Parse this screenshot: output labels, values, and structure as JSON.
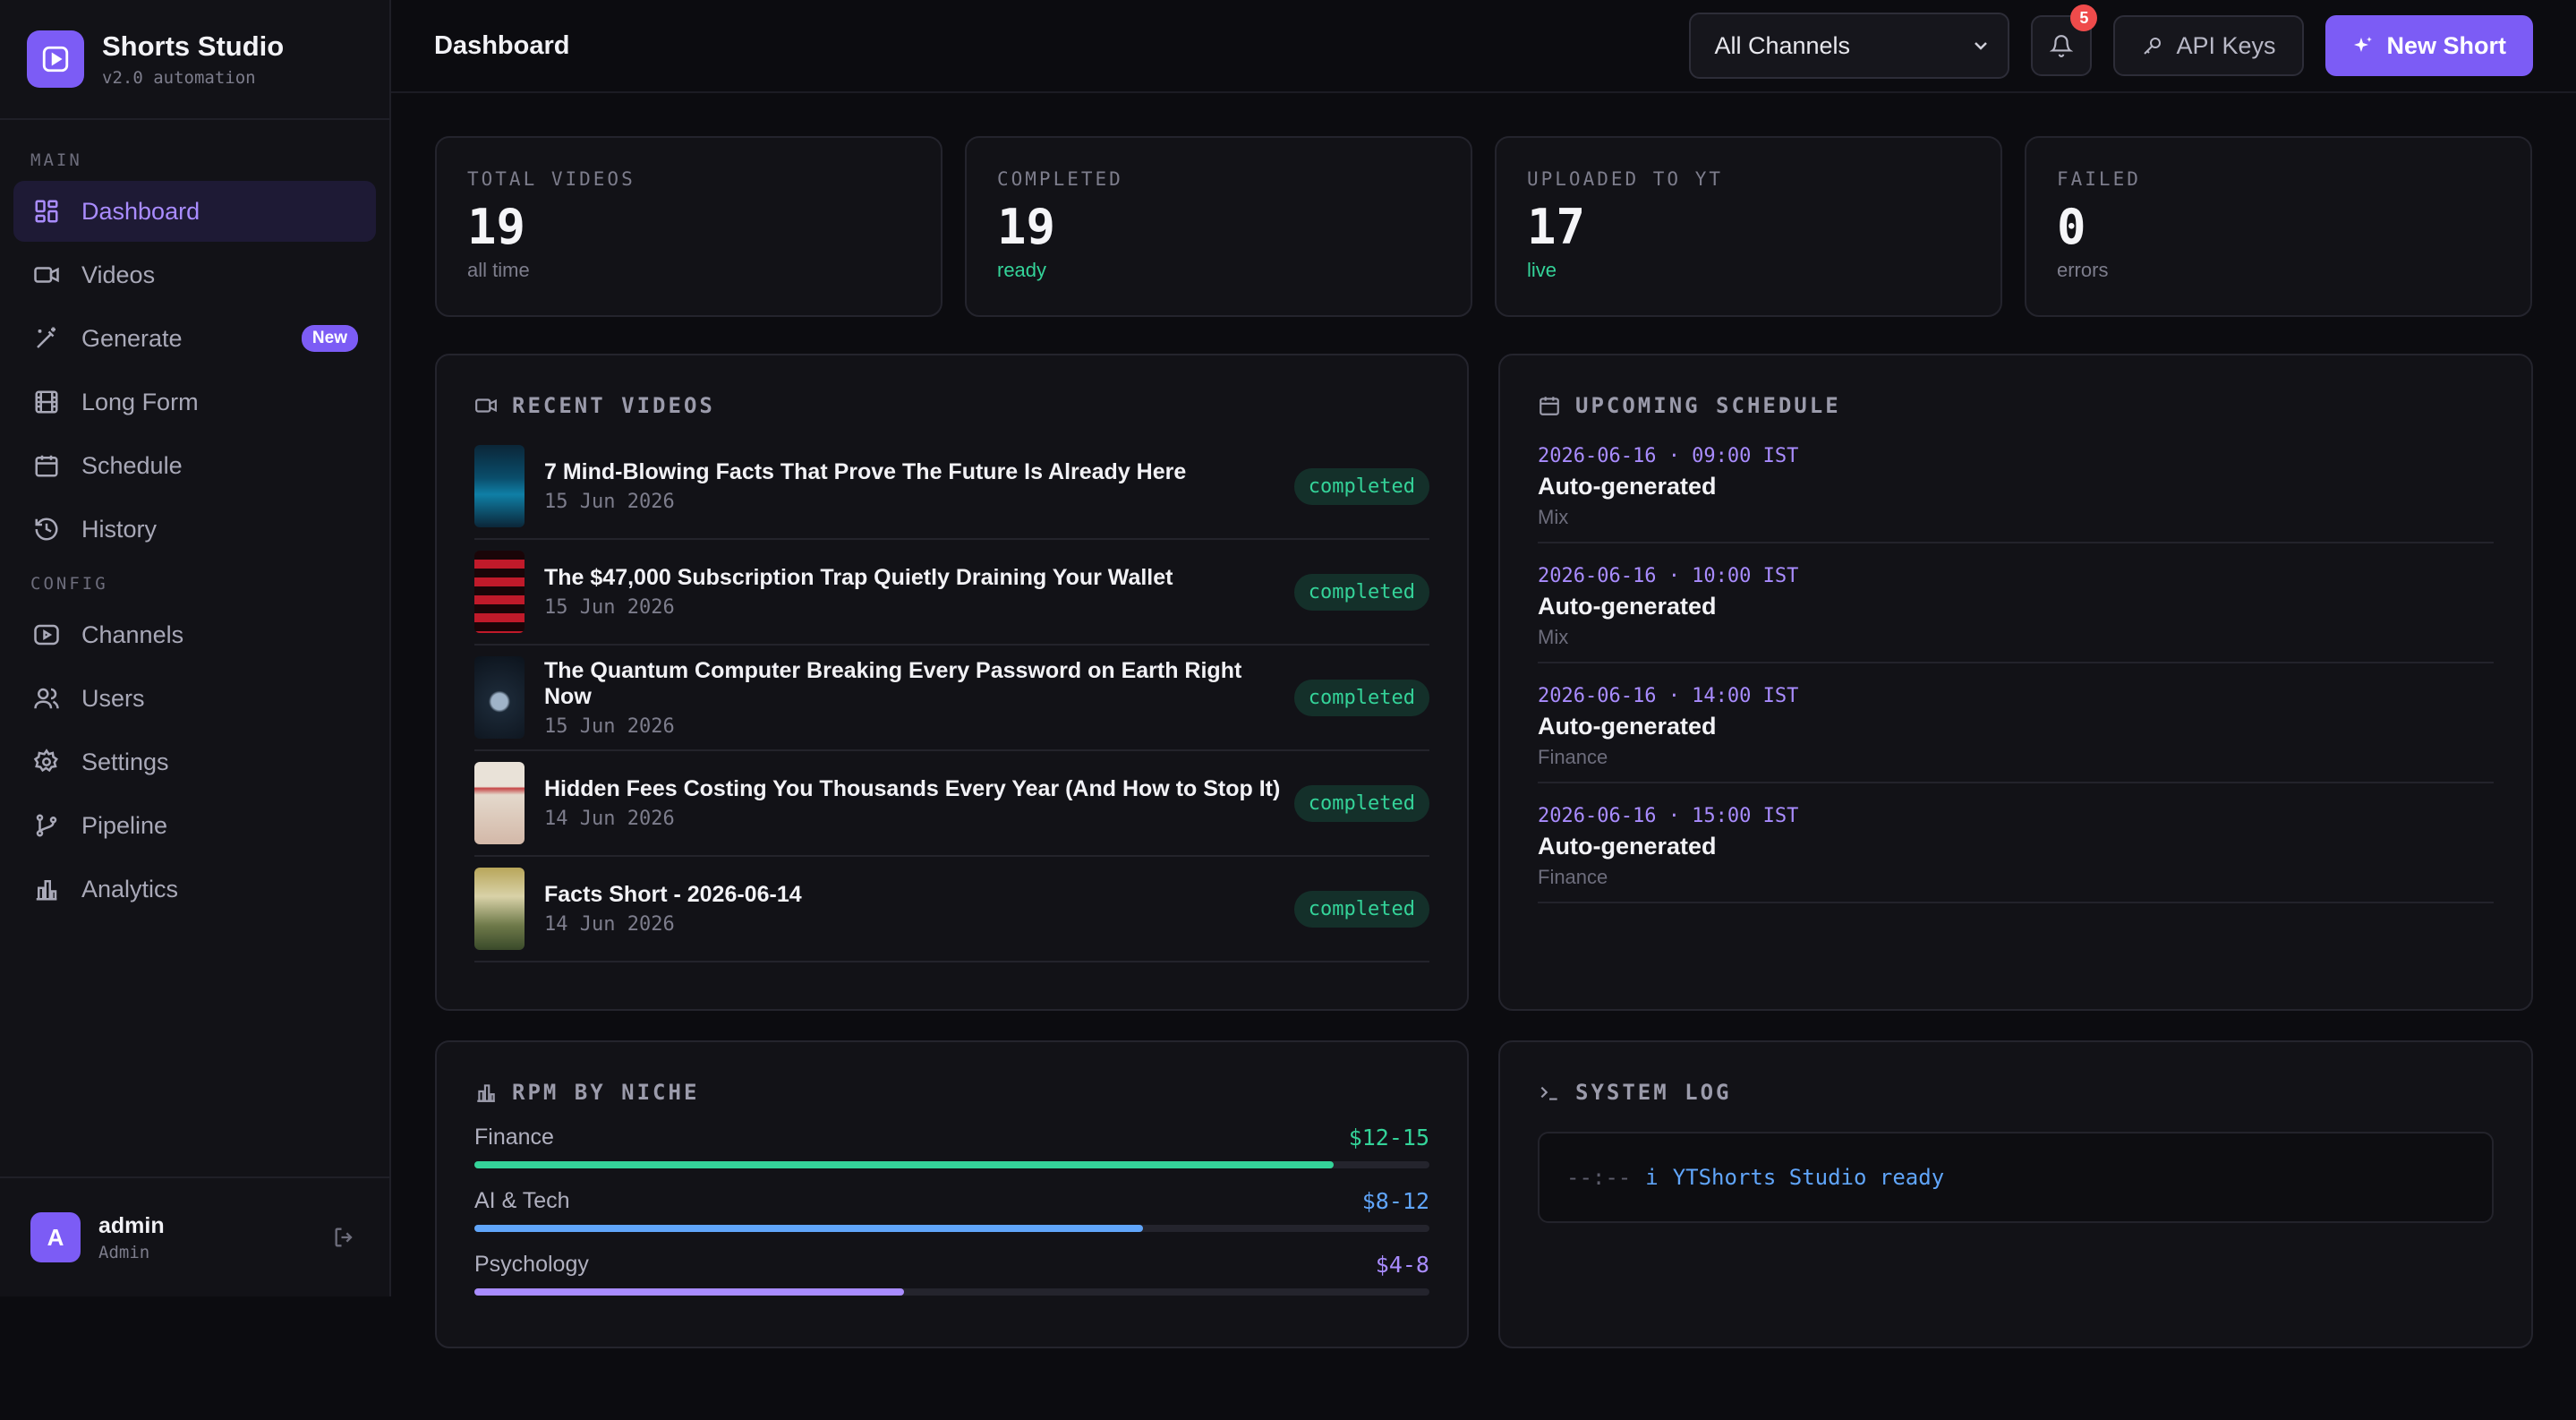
{
  "app": {
    "name": "Shorts Studio",
    "version": "v2.0 automation"
  },
  "sidebar": {
    "sections": [
      {
        "label": "MAIN"
      },
      {
        "label": "CONFIG"
      }
    ],
    "items": [
      {
        "label": "Dashboard",
        "icon": "dashboard-icon",
        "active": true
      },
      {
        "label": "Videos",
        "icon": "video-camera-icon"
      },
      {
        "label": "Generate",
        "icon": "magic-wand-icon",
        "badge": "New"
      },
      {
        "label": "Long Form",
        "icon": "film-icon"
      },
      {
        "label": "Schedule",
        "icon": "calendar-icon"
      },
      {
        "label": "History",
        "icon": "history-icon"
      },
      {
        "label": "Channels",
        "icon": "play-square-icon"
      },
      {
        "label": "Users",
        "icon": "users-icon"
      },
      {
        "label": "Settings",
        "icon": "gear-icon"
      },
      {
        "label": "Pipeline",
        "icon": "git-branch-icon"
      },
      {
        "label": "Analytics",
        "icon": "bar-chart-icon"
      }
    ]
  },
  "user": {
    "initial": "A",
    "name": "admin",
    "role": "Admin"
  },
  "header": {
    "title": "Dashboard",
    "channel_select": "All Channels",
    "notification_count": "5",
    "api_keys_label": "API Keys",
    "new_short_label": "New Short"
  },
  "stats": [
    {
      "label": "TOTAL VIDEOS",
      "value": "19",
      "sub": "all time"
    },
    {
      "label": "COMPLETED",
      "value": "19",
      "sub": "ready"
    },
    {
      "label": "UPLOADED TO YT",
      "value": "17",
      "sub": "live"
    },
    {
      "label": "FAILED",
      "value": "0",
      "sub": "errors"
    }
  ],
  "recent_videos": {
    "title": "RECENT VIDEOS",
    "items": [
      {
        "title": "7 Mind-Blowing Facts That Prove The Future Is Already Here",
        "date": "15 Jun 2026",
        "status": "completed"
      },
      {
        "title": "The $47,000 Subscription Trap Quietly Draining Your Wallet",
        "date": "15 Jun 2026",
        "status": "completed"
      },
      {
        "title": "The Quantum Computer Breaking Every Password on Earth Right Now",
        "date": "15 Jun 2026",
        "status": "completed"
      },
      {
        "title": "Hidden Fees Costing You Thousands Every Year (And How to Stop It)",
        "date": "14 Jun 2026",
        "status": "completed"
      },
      {
        "title": "Facts Short - 2026-06-14",
        "date": "14 Jun 2026",
        "status": "completed"
      }
    ]
  },
  "schedule": {
    "title": "UPCOMING SCHEDULE",
    "items": [
      {
        "time": "2026-06-16 · 09:00 IST",
        "title": "Auto-generated",
        "niche": "Mix"
      },
      {
        "time": "2026-06-16 · 10:00 IST",
        "title": "Auto-generated",
        "niche": "Mix"
      },
      {
        "time": "2026-06-16 · 14:00 IST",
        "title": "Auto-generated",
        "niche": "Finance"
      },
      {
        "time": "2026-06-16 · 15:00 IST",
        "title": "Auto-generated",
        "niche": "Finance"
      }
    ]
  },
  "rpm": {
    "title": "RPM BY NICHE",
    "items": [
      {
        "niche": "Finance",
        "range": "$12-15",
        "fill": 0.9,
        "color": "#34d399"
      },
      {
        "niche": "AI & Tech",
        "range": "$8-12",
        "fill": 0.7,
        "color": "#60a5fa"
      },
      {
        "niche": "Psychology",
        "range": "$4-8",
        "fill": 0.45,
        "color": "#a98cff"
      }
    ]
  },
  "log": {
    "title": "SYSTEM LOG",
    "time": "--:--",
    "level": "i",
    "message": "YTShorts Studio ready"
  }
}
